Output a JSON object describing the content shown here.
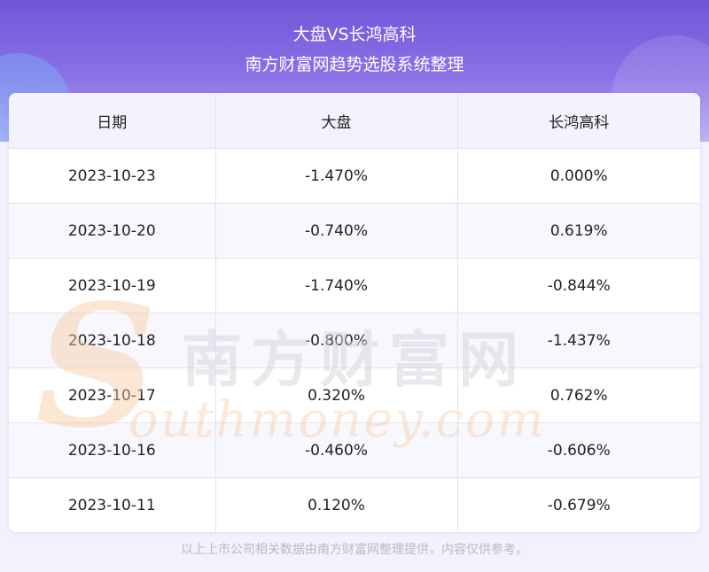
{
  "header": {
    "title": "大盘VS长鸿高科",
    "subtitle": "南方财富网趋势选股系统整理"
  },
  "table": {
    "columns": [
      "日期",
      "大盘",
      "长鸿高科"
    ],
    "rows": [
      [
        "2023-10-23",
        "-1.470%",
        "0.000%"
      ],
      [
        "2023-10-20",
        "-0.740%",
        "0.619%"
      ],
      [
        "2023-10-19",
        "-1.740%",
        "-0.844%"
      ],
      [
        "2023-10-18",
        "-0.800%",
        "-1.437%"
      ],
      [
        "2023-10-17",
        "0.320%",
        "0.762%"
      ],
      [
        "2023-10-16",
        "-0.460%",
        "-0.606%"
      ],
      [
        "2023-10-11",
        "0.120%",
        "-0.679%"
      ]
    ]
  },
  "watermark": {
    "cn": "南方财富网",
    "en": "outhmoney.com",
    "s_letter": "S"
  },
  "footnote": "以上上市公司相关数据由南方财富网整理提供，内容仅供参考。",
  "colors": {
    "header_top": "#6f56d8",
    "header_bottom": "#b7a8f2",
    "watermark_orange": "#f6c9a0",
    "watermark_gray": "#d9d6de"
  }
}
